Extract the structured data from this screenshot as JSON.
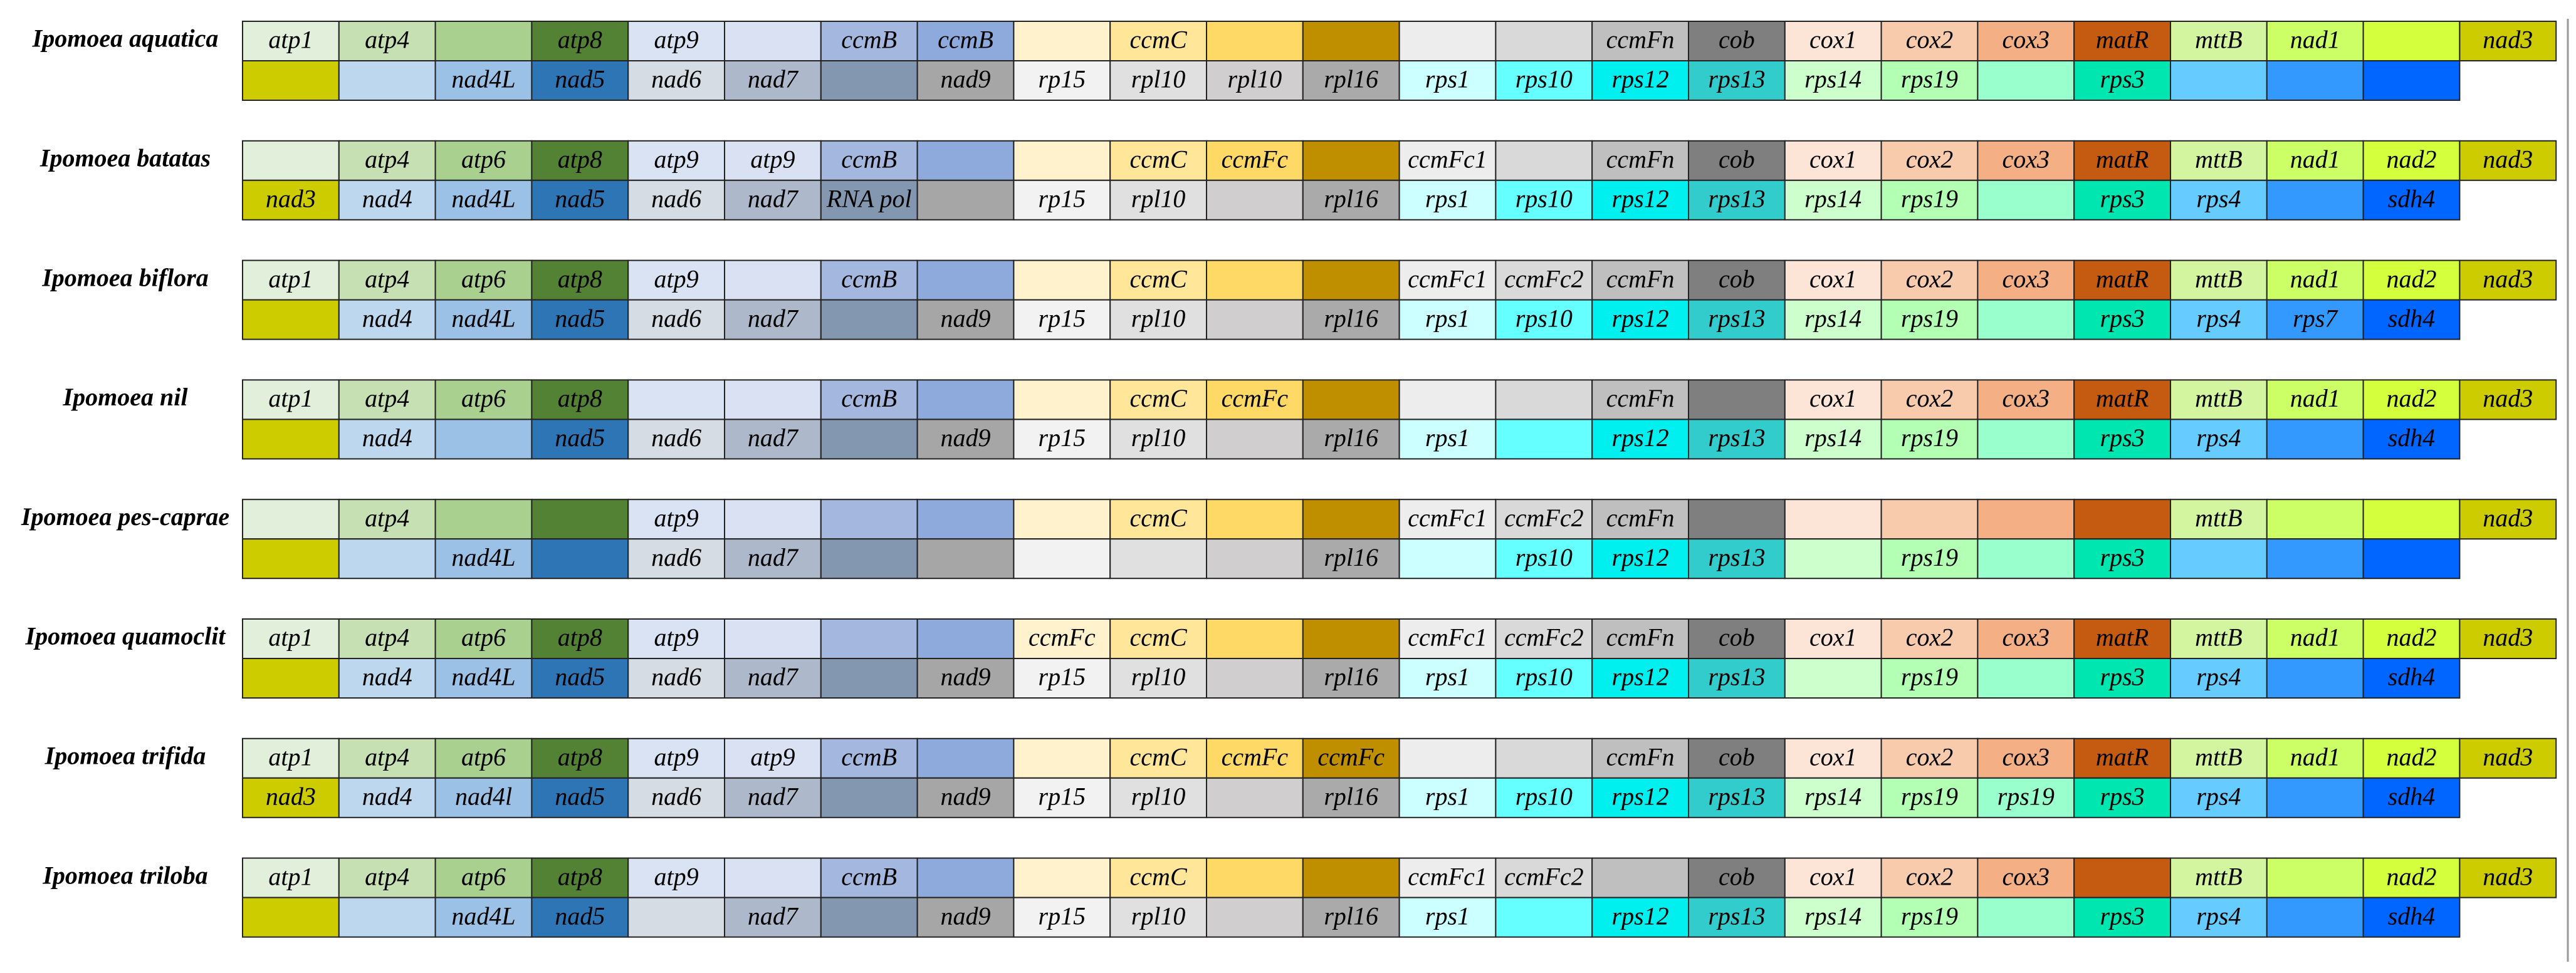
{
  "species": [
    {
      "name": "Ipomoea aquatica",
      "top": [
        "atp1",
        "atp4",
        null,
        "atp8",
        "atp9",
        null,
        "ccmB",
        "ccmB",
        null,
        "ccmC",
        null,
        null,
        null,
        null,
        "ccmFn",
        "cob",
        "cox1",
        "cox2",
        "cox3",
        "matR",
        "mttB",
        "nad1",
        null,
        "nad3"
      ],
      "bottom": [
        null,
        null,
        "nad4L",
        "nad5",
        "nad6",
        "nad7",
        null,
        "nad9",
        "rp15",
        "rpl10",
        "rpl10",
        "rpl16",
        "rps1",
        "rps10",
        "rps12",
        "rps13",
        "rps14",
        "rps19",
        null,
        "rps3",
        null,
        null,
        null
      ]
    },
    {
      "name": "Ipomoea batatas",
      "top": [
        null,
        "atp4",
        "atp6",
        "atp8",
        "atp9",
        "atp9",
        "ccmB",
        null,
        null,
        "ccmC",
        "ccmFc",
        null,
        "ccmFc1",
        null,
        "ccmFn",
        "cob",
        "cox1",
        "cox2",
        "cox3",
        "matR",
        "mttB",
        "nad1",
        "nad2",
        "nad3"
      ],
      "bottom": [
        "nad3",
        "nad4",
        "nad4L",
        "nad5",
        "nad6",
        "nad7",
        "RNA pol",
        null,
        "rp15",
        "rpl10",
        null,
        "rpl16",
        "rps1",
        "rps10",
        "rps12",
        "rps13",
        "rps14",
        "rps19",
        null,
        "rps3",
        "rps4",
        null,
        "sdh4"
      ]
    },
    {
      "name": "Ipomoea biflora",
      "top": [
        "atp1",
        "atp4",
        "atp6",
        "atp8",
        "atp9",
        null,
        "ccmB",
        null,
        null,
        "ccmC",
        null,
        null,
        "ccmFc1",
        "ccmFc2",
        "ccmFn",
        "cob",
        "cox1",
        "cox2",
        "cox3",
        "matR",
        "mttB",
        "nad1",
        "nad2",
        "nad3"
      ],
      "bottom": [
        null,
        "nad4",
        "nad4L",
        "nad5",
        "nad6",
        "nad7",
        null,
        "nad9",
        "rp15",
        "rpl10",
        null,
        "rpl16",
        "rps1",
        "rps10",
        "rps12",
        "rps13",
        "rps14",
        "rps19",
        null,
        "rps3",
        "rps4",
        "rps7",
        "sdh4"
      ]
    },
    {
      "name": "Ipomoea nil",
      "top": [
        "atp1",
        "atp4",
        "atp6",
        "atp8",
        null,
        null,
        "ccmB",
        null,
        null,
        "ccmC",
        "ccmFc",
        null,
        null,
        null,
        "ccmFn",
        null,
        "cox1",
        "cox2",
        "cox3",
        "matR",
        "mttB",
        "nad1",
        "nad2",
        "nad3"
      ],
      "bottom": [
        null,
        "nad4",
        null,
        "nad5",
        "nad6",
        "nad7",
        null,
        "nad9",
        "rp15",
        "rpl10",
        null,
        "rpl16",
        "rps1",
        null,
        "rps12",
        "rps13",
        "rps14",
        "rps19",
        null,
        "rps3",
        "rps4",
        null,
        "sdh4"
      ]
    },
    {
      "name": "Ipomoea pes-caprae",
      "top": [
        null,
        "atp4",
        null,
        null,
        "atp9",
        null,
        null,
        null,
        null,
        "ccmC",
        null,
        null,
        "ccmFc1",
        "ccmFc2",
        "ccmFn",
        null,
        null,
        null,
        null,
        null,
        "mttB",
        null,
        null,
        "nad3"
      ],
      "bottom": [
        null,
        null,
        "nad4L",
        null,
        "nad6",
        "nad7",
        null,
        null,
        null,
        null,
        null,
        "rpl16",
        null,
        "rps10",
        "rps12",
        "rps13",
        null,
        "rps19",
        null,
        "rps3",
        null,
        null,
        null
      ]
    },
    {
      "name": "Ipomoea quamoclit",
      "top": [
        "atp1",
        "atp4",
        "atp6",
        "atp8",
        "atp9",
        null,
        null,
        null,
        "ccmFc",
        "ccmC",
        null,
        null,
        "ccmFc1",
        "ccmFc2",
        "ccmFn",
        "cob",
        "cox1",
        "cox2",
        "cox3",
        "matR",
        "mttB",
        "nad1",
        "nad2",
        "nad3"
      ],
      "bottom": [
        null,
        "nad4",
        "nad4L",
        "nad5",
        "nad6",
        "nad7",
        null,
        "nad9",
        "rp15",
        "rpl10",
        null,
        "rpl16",
        "rps1",
        "rps10",
        "rps12",
        "rps13",
        null,
        "rps19",
        null,
        "rps3",
        "rps4",
        null,
        "sdh4"
      ]
    },
    {
      "name": "Ipomoea trifida",
      "top": [
        "atp1",
        "atp4",
        "atp6",
        "atp8",
        "atp9",
        "atp9",
        "ccmB",
        null,
        null,
        "ccmC",
        "ccmFc",
        "ccmFc",
        null,
        null,
        "ccmFn",
        "cob",
        "cox1",
        "cox2",
        "cox3",
        "matR",
        "mttB",
        "nad1",
        "nad2",
        "nad3"
      ],
      "bottom": [
        "nad3",
        "nad4",
        "nad4l",
        "nad5",
        "nad6",
        "nad7",
        null,
        "nad9",
        "rp15",
        "rpl10",
        null,
        "rpl16",
        "rps1",
        "rps10",
        "rps12",
        "rps13",
        "rps14",
        "rps19",
        "rps19",
        "rps3",
        "rps4",
        null,
        "sdh4"
      ]
    },
    {
      "name": "Ipomoea triloba",
      "top": [
        "atp1",
        "atp4",
        "atp6",
        "atp8",
        "atp9",
        null,
        "ccmB",
        null,
        null,
        "ccmC",
        null,
        null,
        "ccmFc1",
        "ccmFc2",
        null,
        "cob",
        "cox1",
        "cox2",
        "cox3",
        null,
        "mttB",
        null,
        "nad2",
        "nad3"
      ],
      "bottom": [
        null,
        null,
        "nad4L",
        "nad5",
        null,
        "nad7",
        null,
        "nad9",
        "rp15",
        "rpl10",
        null,
        "rpl16",
        "rps1",
        null,
        "rps12",
        "rps13",
        "rps14",
        "rps19",
        null,
        "rps3",
        "rps4",
        null,
        "sdh4"
      ]
    }
  ],
  "column_colors": {
    "top": [
      "#e2efda",
      "#c6e0b4",
      "#a9d08e",
      "#548235",
      "#dae3f3",
      "#d9e1f2",
      "#a4b7de",
      "#8ea9db",
      "#fff2cc",
      "#ffe699",
      "#ffd966",
      "#bf8f00",
      "#ededed",
      "#d9d9d9",
      "#bfbfbf",
      "#7f7f7f",
      "#fce4d6",
      "#f8cbad",
      "#f4b084",
      "#c55a11",
      "#d4f5a0",
      "#ccff66",
      "#d4ff3c",
      "#cccc00"
    ],
    "bottom": [
      "#cccc00",
      "#bdd7ee",
      "#9bc2e6",
      "#2e75b6",
      "#d6dce4",
      "#adb9ca",
      "#8497b0",
      "#a6a6a6",
      "#f2f2f2",
      "#e0e0e0",
      "#d0cece",
      "#aaaaaa",
      "#ccffff",
      "#66ffff",
      "#00f0f0",
      "#33cccc",
      "#ccffcc",
      "#b3ffb3",
      "#99ffcc",
      "#00e6b0",
      "#66ccff",
      "#3399ff",
      "#0066ff"
    ]
  }
}
